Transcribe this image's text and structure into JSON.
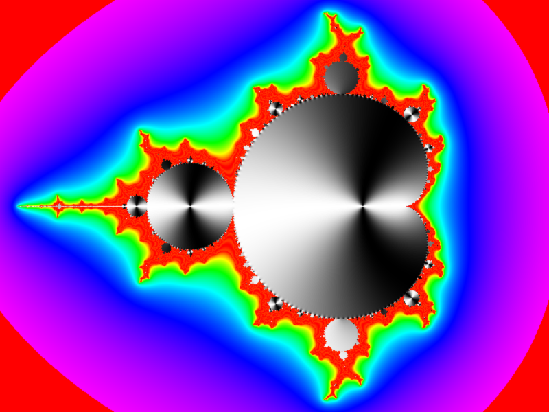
{
  "image": {
    "subject": "mandelbrot-set",
    "background_color": "#ff0000",
    "interior_palette": [
      "#000000",
      "#ffffff"
    ],
    "exterior_palette": [
      "#ff0000",
      "#ff8000",
      "#ffff00",
      "#80ff00",
      "#00ff80",
      "#00ffff",
      "#0080ff",
      "#0000ff",
      "#8000ff",
      "#ff00ff"
    ]
  }
}
